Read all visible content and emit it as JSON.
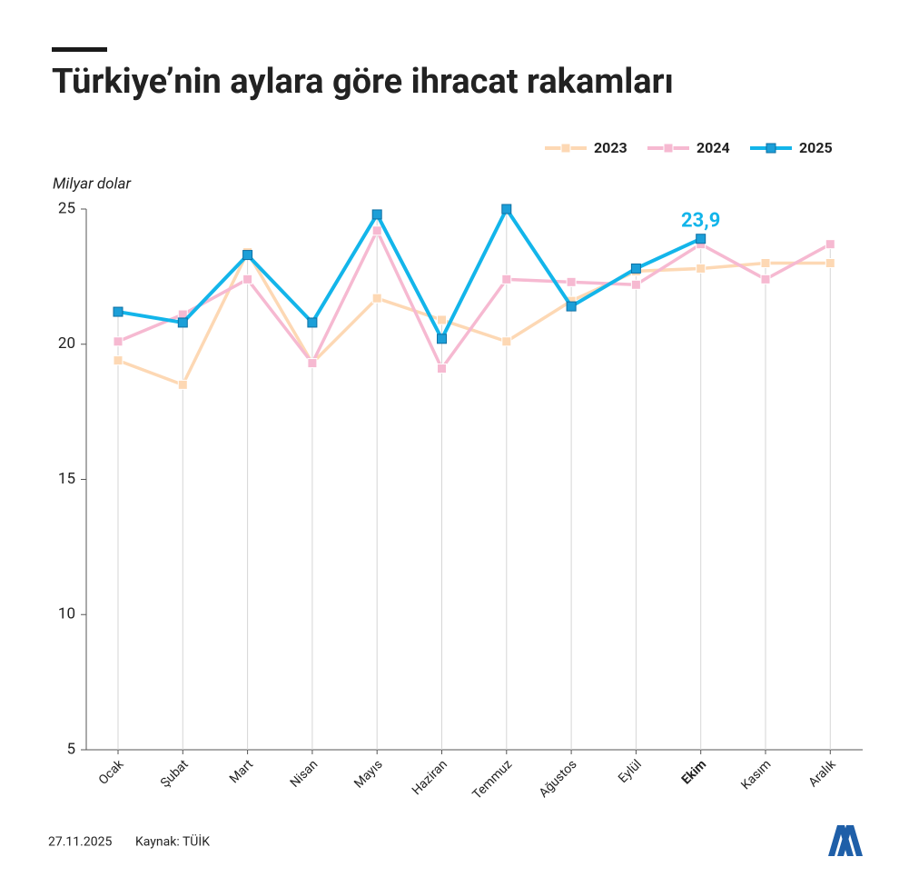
{
  "chart_data": {
    "type": "line",
    "title": "Türkiye’nin aylara göre ihracat rakamları",
    "y_axis_label": "Milyar dolar",
    "categories": [
      "Ocak",
      "Şubat",
      "Mart",
      "Nisan",
      "Mayıs",
      "Haziran",
      "Temmuz",
      "Ağustos",
      "Eylül",
      "Ekim",
      "Kasım",
      "Aralık"
    ],
    "series": [
      {
        "name": "2023",
        "color": "#fdd8b4",
        "values": [
          19.4,
          18.5,
          23.4,
          19.3,
          21.7,
          20.9,
          20.1,
          21.6,
          22.7,
          22.8,
          23.0,
          23.0
        ]
      },
      {
        "name": "2024",
        "color": "#f6b9d1",
        "values": [
          20.1,
          21.1,
          22.4,
          19.3,
          24.2,
          19.1,
          22.4,
          22.3,
          22.2,
          23.7,
          22.4,
          23.7
        ]
      },
      {
        "name": "2025",
        "color": "#13b5ea",
        "values": [
          21.2,
          20.8,
          23.3,
          20.8,
          24.8,
          20.2,
          25.0,
          21.4,
          22.8,
          23.9,
          null,
          null
        ],
        "value_labels": [
          null,
          null,
          null,
          null,
          null,
          null,
          null,
          null,
          null,
          "23,9",
          null,
          null
        ]
      }
    ],
    "ylim": [
      5,
      25
    ],
    "yticks": [
      5,
      10,
      15,
      20,
      25
    ],
    "grid": false,
    "legend": "top-right",
    "date": "27.11.2025",
    "source": "Kaynak: TÜİK"
  }
}
